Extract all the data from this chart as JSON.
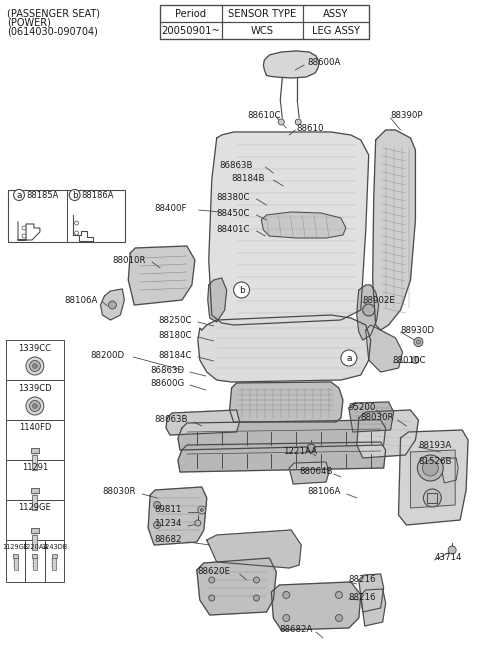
{
  "title_line1": "(PASSENGER SEAT)",
  "title_line2": "(POWER)",
  "title_line3": "(0614030-090704)",
  "table_headers": [
    "Period",
    "SENSOR TYPE",
    "ASSY"
  ],
  "table_row": [
    "20050901~",
    "WCS",
    "LEG ASSY"
  ],
  "bg_color": "#ffffff",
  "line_color": "#4a4a4a",
  "text_color": "#1a1a1a",
  "font_size_title": 7.0,
  "font_size_label": 6.2,
  "font_size_table": 7.2,
  "font_size_small": 5.8
}
